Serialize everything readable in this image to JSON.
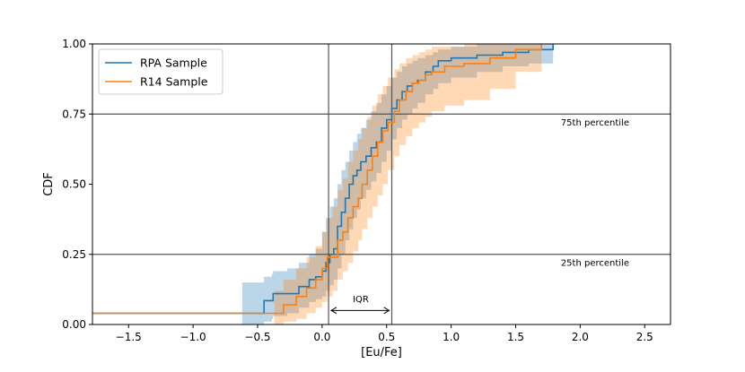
{
  "chart_data": {
    "type": "line",
    "title": "",
    "xlabel": "[Eu/Fe]",
    "ylabel": "CDF",
    "xlim": [
      -1.78,
      2.7
    ],
    "ylim": [
      0.0,
      1.0
    ],
    "xticks": [
      -1.5,
      -1.0,
      -0.5,
      0.0,
      0.5,
      1.0,
      1.5,
      2.0,
      2.5
    ],
    "xtick_labels": [
      "−1.5",
      "−1.0",
      "−0.5",
      "0.0",
      "0.5",
      "1.0",
      "1.5",
      "2.0",
      "2.5"
    ],
    "yticks": [
      0.0,
      0.25,
      0.5,
      0.75,
      1.0
    ],
    "ytick_labels": [
      "0.00",
      "0.25",
      "0.50",
      "0.75",
      "1.00"
    ],
    "legend_position": "top-left",
    "reference_lines": {
      "vertical": [
        0.05,
        0.54
      ],
      "horizontal": [
        0.25,
        0.75
      ]
    },
    "annotations": [
      {
        "text": "75th percentile",
        "x": 1.85,
        "y": 0.71
      },
      {
        "text": "25th percentile",
        "x": 1.85,
        "y": 0.21
      },
      {
        "text": "IQR",
        "x": 0.3,
        "y": 0.08
      }
    ],
    "iqr_arrow": {
      "x_start": 0.07,
      "x_end": 0.52,
      "y": 0.05
    },
    "series": [
      {
        "name": "RPA Sample",
        "color": "#1f77b4",
        "x": [
          -1.78,
          -0.62,
          -0.45,
          -0.39,
          -0.38,
          -0.27,
          -0.18,
          -0.1,
          -0.05,
          0.0,
          0.03,
          0.06,
          0.09,
          0.12,
          0.15,
          0.18,
          0.21,
          0.24,
          0.27,
          0.3,
          0.34,
          0.38,
          0.42,
          0.46,
          0.5,
          0.54,
          0.58,
          0.62,
          0.66,
          0.7,
          0.74,
          0.8,
          0.86,
          0.9,
          1.0,
          1.2,
          1.4,
          1.6,
          1.79
        ],
        "y": [
          0.04,
          0.04,
          0.085,
          0.085,
          0.11,
          0.11,
          0.135,
          0.16,
          0.17,
          0.19,
          0.22,
          0.25,
          0.27,
          0.35,
          0.4,
          0.45,
          0.5,
          0.53,
          0.55,
          0.58,
          0.6,
          0.63,
          0.65,
          0.7,
          0.73,
          0.77,
          0.8,
          0.83,
          0.85,
          0.86,
          0.87,
          0.9,
          0.92,
          0.94,
          0.95,
          0.96,
          0.97,
          0.98,
          1.0
        ],
        "band_upper": [
          0.04,
          0.15,
          0.17,
          0.18,
          0.19,
          0.2,
          0.22,
          0.25,
          0.27,
          0.33,
          0.38,
          0.42,
          0.45,
          0.5,
          0.55,
          0.58,
          0.62,
          0.65,
          0.68,
          0.7,
          0.73,
          0.76,
          0.79,
          0.82,
          0.85,
          0.88,
          0.9,
          0.92,
          0.93,
          0.94,
          0.95,
          0.96,
          0.97,
          0.98,
          0.99,
          1.0,
          1.0,
          1.0,
          1.0
        ],
        "band_lower": [
          0.04,
          0.0,
          0.01,
          0.02,
          0.03,
          0.04,
          0.06,
          0.08,
          0.09,
          0.1,
          0.12,
          0.14,
          0.16,
          0.2,
          0.25,
          0.3,
          0.34,
          0.38,
          0.41,
          0.45,
          0.48,
          0.51,
          0.54,
          0.58,
          0.62,
          0.66,
          0.7,
          0.73,
          0.75,
          0.77,
          0.79,
          0.82,
          0.84,
          0.86,
          0.88,
          0.9,
          0.92,
          0.93,
          0.93
        ]
      },
      {
        "name": "R14 Sample",
        "color": "#ff7f0e",
        "x": [
          -1.78,
          -0.37,
          -0.3,
          -0.2,
          -0.12,
          -0.05,
          0.0,
          0.04,
          0.08,
          0.12,
          0.16,
          0.2,
          0.24,
          0.28,
          0.31,
          0.35,
          0.39,
          0.43,
          0.47,
          0.51,
          0.56,
          0.6,
          0.65,
          0.7,
          0.75,
          0.8,
          0.85,
          0.95,
          1.1,
          1.3,
          1.5,
          1.7
        ],
        "y": [
          0.04,
          0.04,
          0.07,
          0.1,
          0.13,
          0.16,
          0.2,
          0.24,
          0.24,
          0.3,
          0.33,
          0.38,
          0.42,
          0.45,
          0.5,
          0.55,
          0.6,
          0.65,
          0.69,
          0.72,
          0.76,
          0.8,
          0.83,
          0.86,
          0.87,
          0.89,
          0.9,
          0.92,
          0.93,
          0.95,
          0.98,
          1.0
        ],
        "band_upper": [
          0.04,
          0.12,
          0.16,
          0.2,
          0.24,
          0.28,
          0.33,
          0.38,
          0.42,
          0.48,
          0.52,
          0.58,
          0.62,
          0.66,
          0.7,
          0.74,
          0.78,
          0.82,
          0.85,
          0.88,
          0.91,
          0.93,
          0.95,
          0.96,
          0.97,
          0.98,
          0.99,
          0.99,
          1.0,
          1.0,
          1.0,
          1.0
        ],
        "band_lower": [
          0.04,
          0.0,
          0.01,
          0.02,
          0.04,
          0.06,
          0.08,
          0.1,
          0.12,
          0.16,
          0.19,
          0.22,
          0.26,
          0.3,
          0.34,
          0.38,
          0.42,
          0.46,
          0.5,
          0.55,
          0.6,
          0.64,
          0.67,
          0.7,
          0.72,
          0.74,
          0.76,
          0.78,
          0.8,
          0.84,
          0.9,
          0.97
        ]
      }
    ]
  }
}
